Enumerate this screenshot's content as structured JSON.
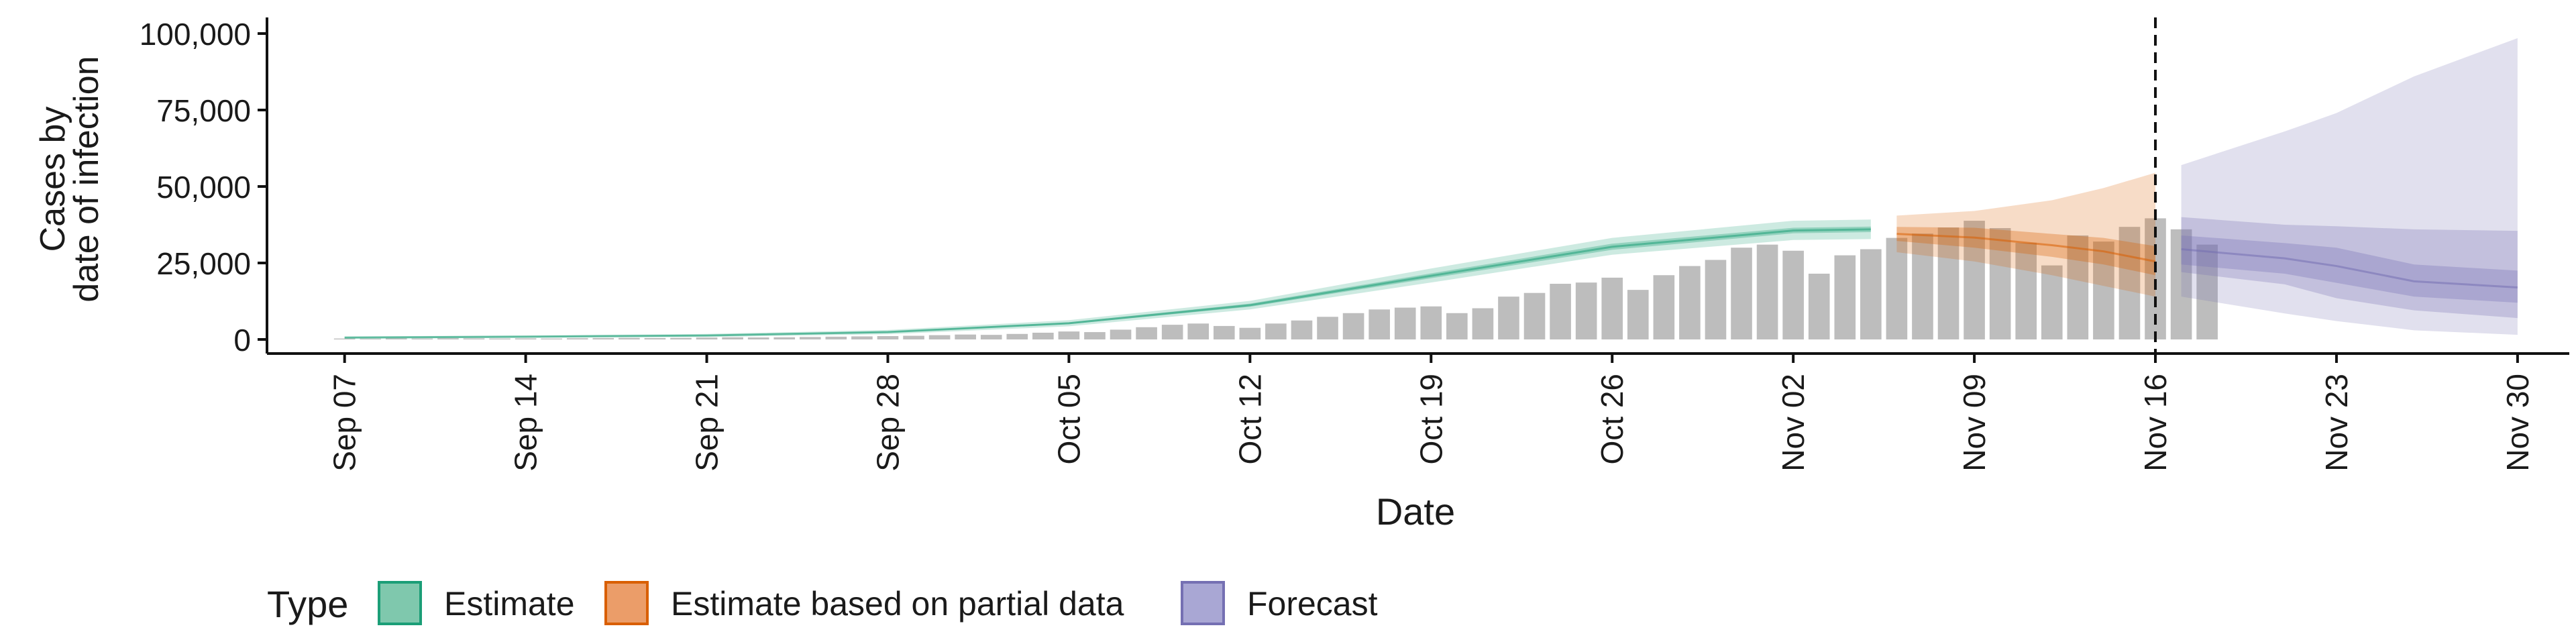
{
  "chart_data": {
    "type": "bar",
    "ylabel_lines": [
      "Cases by",
      "date of infection"
    ],
    "xlabel": "Date",
    "x_range": [
      "2020-09-04",
      "2020-12-02"
    ],
    "ylim": [
      0,
      100000
    ],
    "y_ticks": [
      {
        "value": 0,
        "label": "0"
      },
      {
        "value": 25000,
        "label": "25,000"
      },
      {
        "value": 50000,
        "label": "50,000"
      },
      {
        "value": 75000,
        "label": "75,000"
      },
      {
        "value": 100000,
        "label": "100,000"
      }
    ],
    "x_ticks": [
      {
        "date": "2020-09-07",
        "label": "Sep 07"
      },
      {
        "date": "2020-09-14",
        "label": "Sep 14"
      },
      {
        "date": "2020-09-21",
        "label": "Sep 21"
      },
      {
        "date": "2020-09-28",
        "label": "Sep 28"
      },
      {
        "date": "2020-10-05",
        "label": "Oct 05"
      },
      {
        "date": "2020-10-12",
        "label": "Oct 12"
      },
      {
        "date": "2020-10-19",
        "label": "Oct 19"
      },
      {
        "date": "2020-10-26",
        "label": "Oct 26"
      },
      {
        "date": "2020-11-02",
        "label": "Nov 02"
      },
      {
        "date": "2020-11-09",
        "label": "Nov 09"
      },
      {
        "date": "2020-11-16",
        "label": "Nov 16"
      },
      {
        "date": "2020-11-23",
        "label": "Nov 23"
      },
      {
        "date": "2020-11-30",
        "label": "Nov 30"
      }
    ],
    "grid": false,
    "vline_date": "2020-11-16",
    "bars_start_date": "2020-09-07",
    "bar_color": "#bdbdbd",
    "reported_cases": [
      300,
      250,
      350,
      300,
      400,
      350,
      300,
      350,
      300,
      400,
      450,
      500,
      450,
      500,
      600,
      700,
      650,
      700,
      800,
      900,
      1000,
      1100,
      1200,
      1400,
      1600,
      1500,
      1800,
      2200,
      2600,
      2400,
      3200,
      4000,
      4800,
      5200,
      4400,
      3800,
      5200,
      6200,
      7400,
      8600,
      9800,
      10400,
      10800,
      8600,
      10200,
      14000,
      15200,
      18200,
      18600,
      20200,
      16200,
      21000,
      24000,
      26000,
      30000,
      31000,
      29000,
      21500,
      27500,
      29500,
      33200,
      34600,
      36600,
      38800,
      36400,
      31600,
      24200,
      34000,
      32000,
      36800,
      39600,
      36000,
      31000
    ],
    "legend": {
      "title": "Type",
      "position": "bottom",
      "entries": [
        {
          "key": "estimate",
          "label": "Estimate",
          "fill": "#7fc8ad",
          "stroke": "#1b9e77"
        },
        {
          "key": "partial",
          "label": "Estimate based on partial data",
          "fill": "#eb9d69",
          "stroke": "#d95f02"
        },
        {
          "key": "forecast",
          "label": "Forecast",
          "fill": "#a9a7d4",
          "stroke": "#7570b3"
        }
      ]
    },
    "series": [
      {
        "key": "estimate",
        "dates": [
          "2020-09-07",
          "2020-09-14",
          "2020-09-21",
          "2020-09-28",
          "2020-10-05",
          "2020-10-12",
          "2020-10-19",
          "2020-10-26",
          "2020-11-02",
          "2020-11-05"
        ],
        "median": [
          600,
          900,
          1300,
          2400,
          5300,
          11200,
          20800,
          30300,
          35600,
          36000
        ],
        "inner_lower": [
          500,
          800,
          1150,
          2200,
          5000,
          10700,
          20000,
          29300,
          34700,
          35100
        ],
        "inner_upper": [
          700,
          1000,
          1450,
          2600,
          5600,
          11700,
          21600,
          31300,
          36500,
          36900
        ],
        "outer_lower": [
          250,
          500,
          800,
          1700,
          4300,
          9800,
          18600,
          27700,
          32500,
          32800
        ],
        "outer_upper": [
          1000,
          1300,
          1800,
          3100,
          6300,
          12600,
          23200,
          33200,
          38800,
          39200
        ]
      },
      {
        "key": "partial",
        "dates": [
          "2020-11-06",
          "2020-11-09",
          "2020-11-12",
          "2020-11-14",
          "2020-11-16"
        ],
        "median": [
          34500,
          33300,
          30800,
          28800,
          25500
        ],
        "inner_lower": [
          32200,
          30000,
          27000,
          24500,
          21000
        ],
        "inner_upper": [
          36800,
          36500,
          34500,
          33200,
          30500
        ],
        "outer_lower": [
          28500,
          25500,
          21000,
          17500,
          14000
        ],
        "outer_upper": [
          40500,
          42000,
          45500,
          49500,
          54500
        ]
      },
      {
        "key": "forecast",
        "dates": [
          "2020-11-17",
          "2020-11-21",
          "2020-11-23",
          "2020-11-26",
          "2020-11-30"
        ],
        "median": [
          29500,
          26500,
          24000,
          19000,
          17000
        ],
        "inner_lower": [
          24500,
          21500,
          18500,
          14000,
          12000
        ],
        "inner_upper": [
          34000,
          31500,
          30000,
          24500,
          22500
        ],
        "mid_lower": [
          22000,
          18000,
          13500,
          9500,
          7000
        ],
        "mid_upper": [
          40000,
          37500,
          37000,
          36000,
          35500
        ],
        "outer_lower": [
          14000,
          8500,
          6000,
          3000,
          1500
        ],
        "outer_upper": [
          57000,
          68000,
          74000,
          86000,
          98500
        ]
      }
    ]
  }
}
